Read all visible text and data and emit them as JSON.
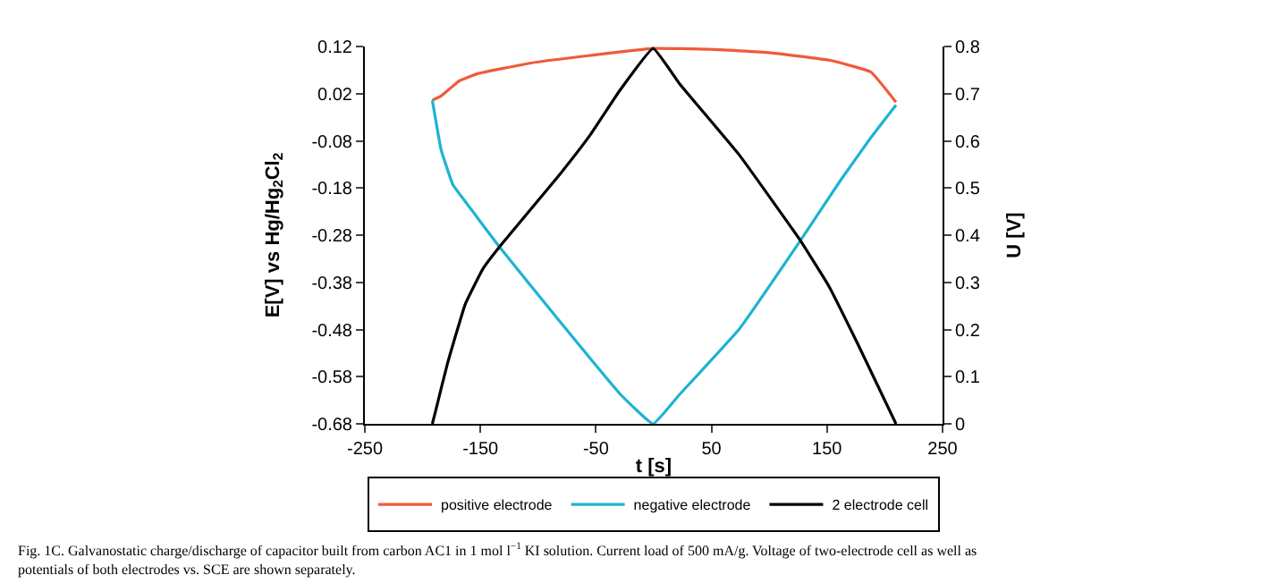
{
  "chart_data": {
    "type": "line",
    "xlabel": "t [s]",
    "ylabel": "E[V] vs Hg/Hg$_{2}$Cl$_{2}$",
    "y2label": "U [V]",
    "xlim": [
      -250,
      250
    ],
    "xticks": [
      -250,
      -150,
      -50,
      50,
      150,
      250
    ],
    "ylim": [
      -0.68,
      0.12
    ],
    "yticks": [
      -0.68,
      -0.58,
      -0.48,
      -0.38,
      -0.28,
      -0.18,
      -0.08,
      0.02,
      0.12
    ],
    "y2lim": [
      0,
      0.8
    ],
    "y2ticks": [
      0,
      0.1,
      0.2,
      0.3,
      0.4,
      0.5,
      0.6,
      0.7,
      0.8
    ],
    "legend": "bottom",
    "marker": "none",
    "line_style": "solid",
    "series": [
      {
        "name": "positive electrode",
        "color": "#f05a3a",
        "x": [
          -191.6,
          -184,
          -168.4,
          -152.9,
          -106.4,
          -54.8,
          -0.5,
          48.5,
          100,
          151.8,
          187.9,
          209.7
        ],
        "values": [
          0.006,
          0.015,
          0.047,
          0.062,
          0.085,
          0.101,
          0.116,
          0.114,
          0.107,
          0.091,
          0.066,
          0.002
        ]
      },
      {
        "name": "negative electrode",
        "color": "#1cb4d2",
        "x": [
          -191.6,
          -184,
          -173.6,
          -158,
          -134.8,
          -80.6,
          -29,
          -0.5,
          22.7,
          74.4,
          126,
          162.2,
          188,
          209.7
        ],
        "values": [
          0.006,
          -0.099,
          -0.174,
          -0.225,
          -0.301,
          -0.465,
          -0.617,
          -0.68,
          -0.617,
          -0.478,
          -0.295,
          -0.162,
          -0.073,
          -0.004
        ]
      },
      {
        "name": "2 electrode cell",
        "color": "#000000",
        "axis": "y2",
        "x": [
          -191.6,
          -189,
          -178.7,
          -163.2,
          -147.7,
          -132.2,
          -106.4,
          -80.6,
          -54.8,
          -29,
          -0.5,
          22.7,
          74.4,
          126,
          151.8,
          177.7,
          209.7
        ],
        "values": [
          0,
          0.025,
          0.126,
          0.253,
          0.329,
          0.379,
          0.455,
          0.531,
          0.613,
          0.708,
          0.796,
          0.72,
          0.569,
          0.392,
          0.291,
          0.164,
          0
        ]
      }
    ],
    "annotations": [
      "Fig. 1C. Galvanostatic charge/discharge of capacitor built from carbon AC1 in 1 mol l$^{−1}$ KI solution. Current load of 500 mA/g. Voltage of two-electrode cell as well as potentials of both electrodes vs. SCE are shown separately."
    ]
  }
}
